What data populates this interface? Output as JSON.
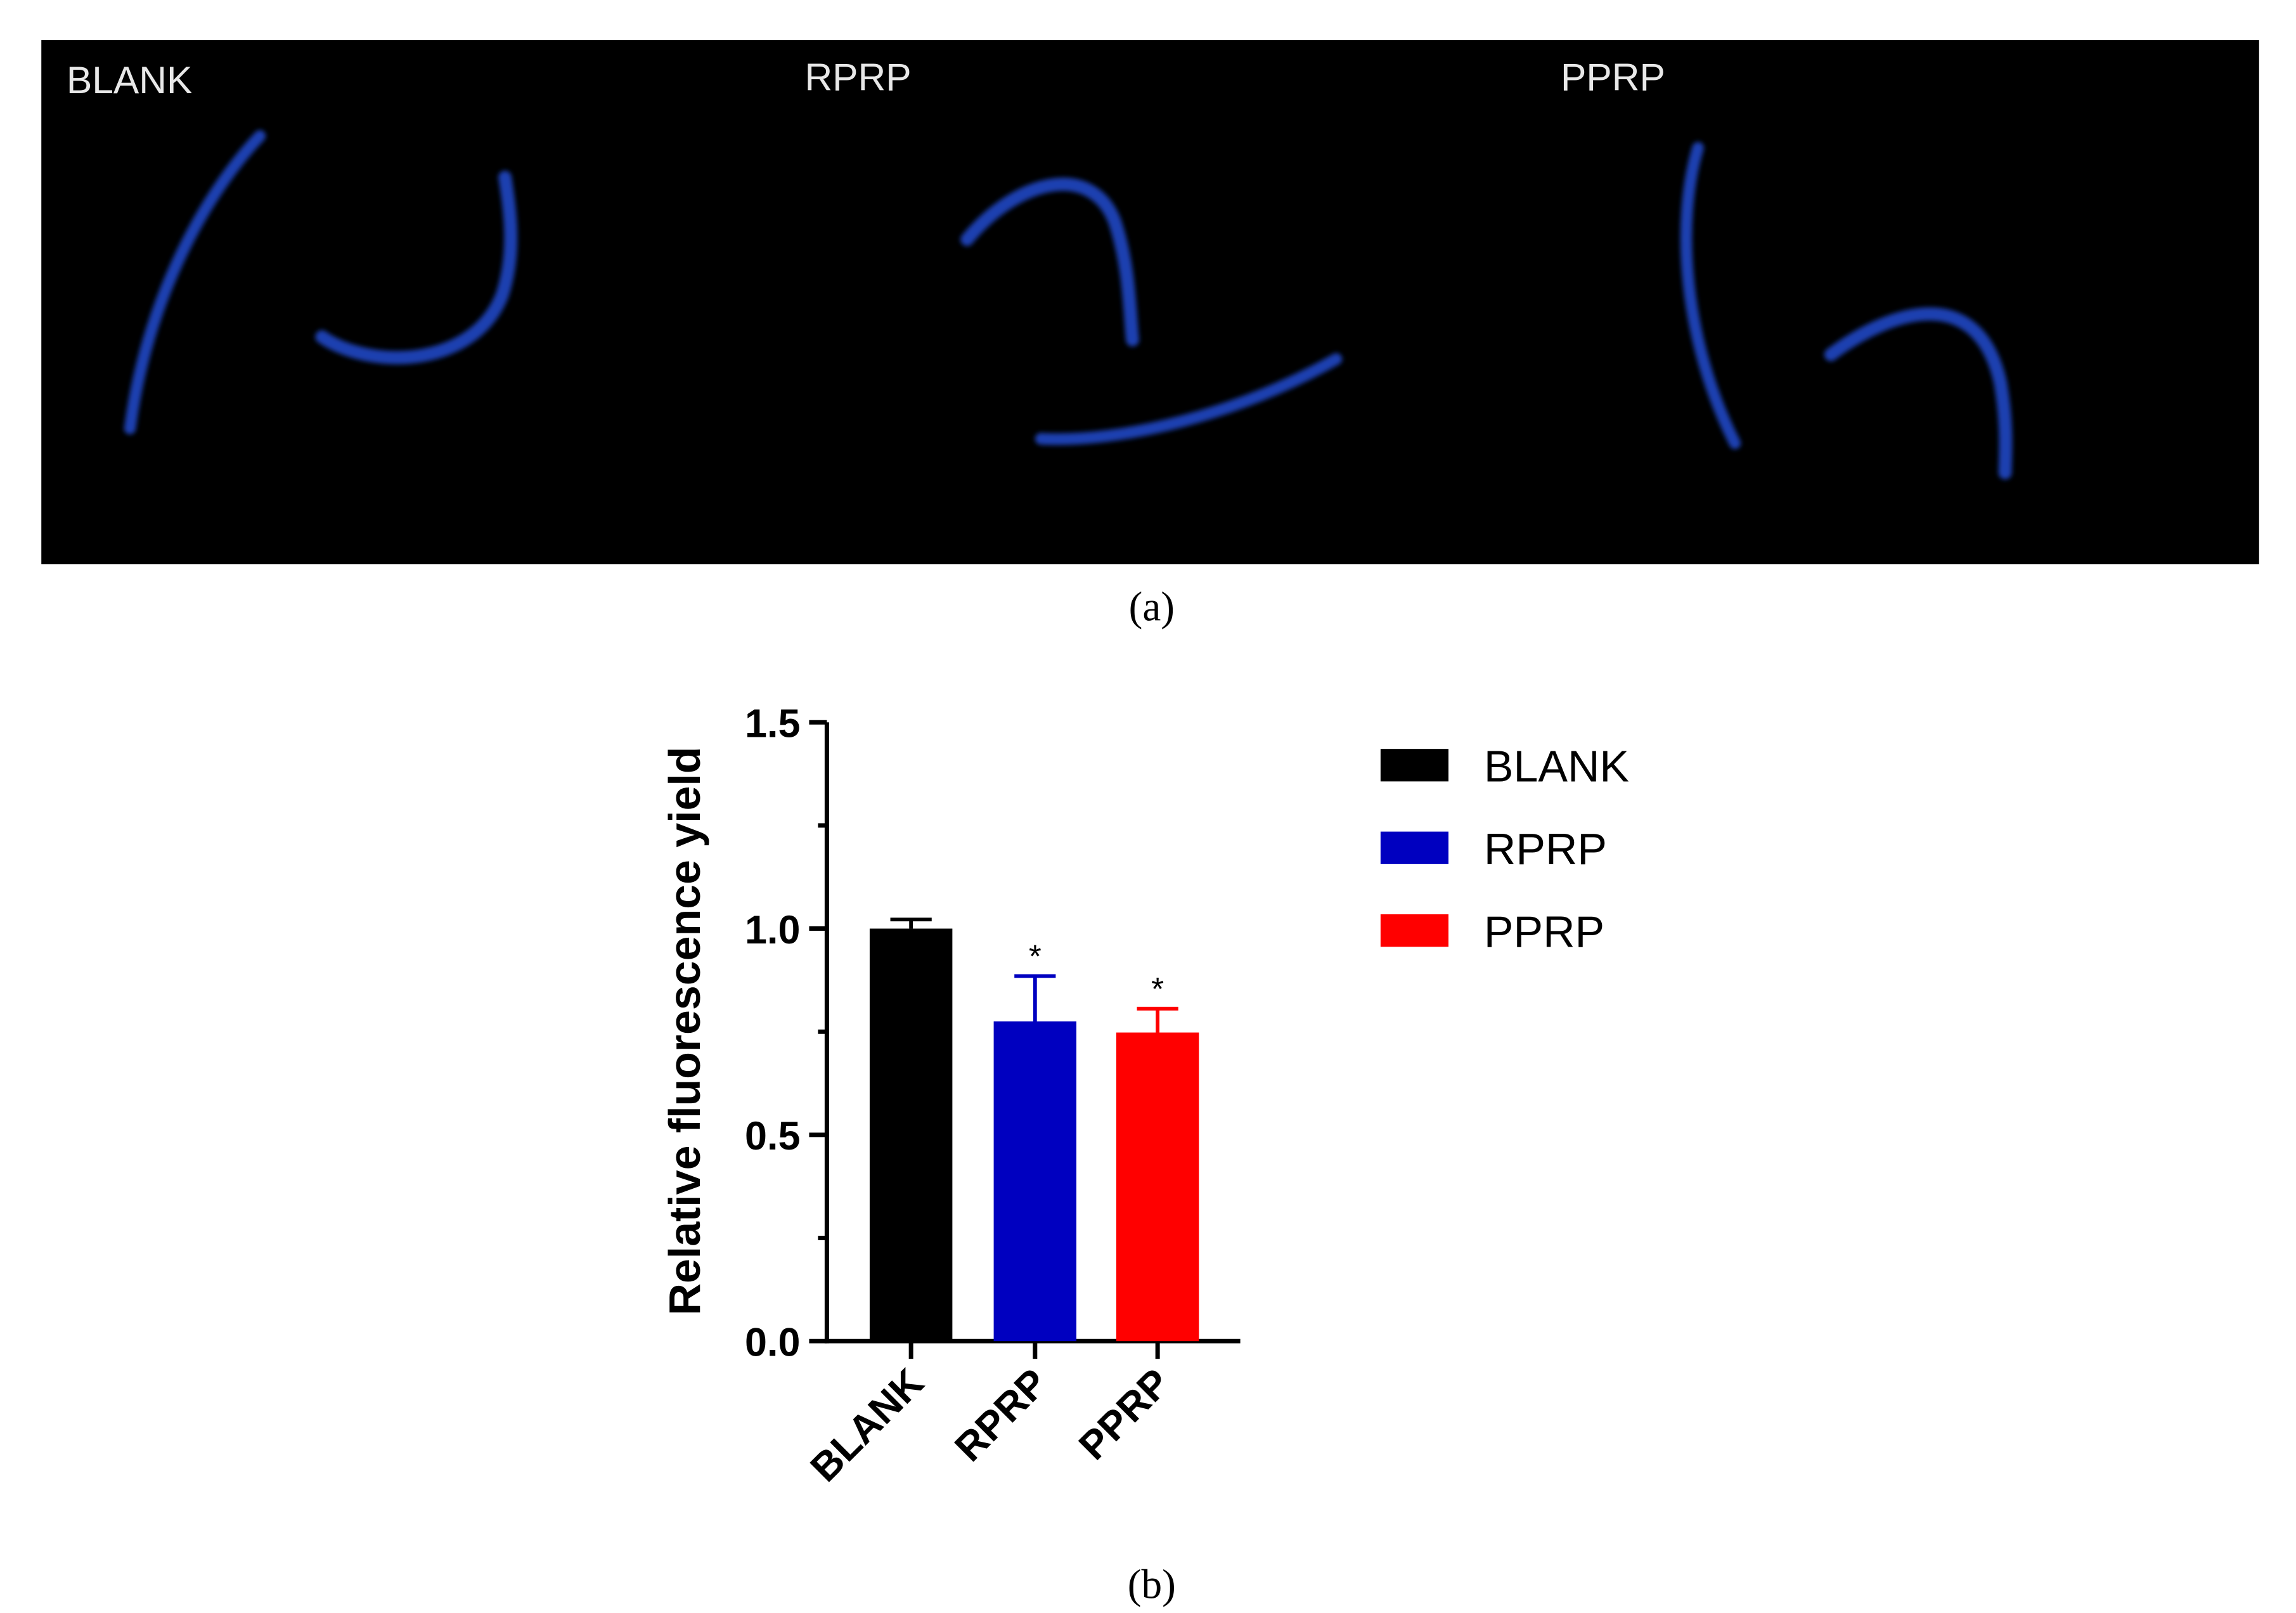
{
  "panel_a": {
    "labels": [
      "BLANK",
      "RPRP",
      "PPRP"
    ],
    "caption": "(a)"
  },
  "chart_data": {
    "type": "bar",
    "caption": "(b)",
    "y_label": "Relative fluorescence yield",
    "categories": [
      "BLANK",
      "RPRP",
      "PPRP"
    ],
    "values": [
      1.0,
      0.775,
      0.748
    ],
    "errors": [
      0.022,
      0.11,
      0.058
    ],
    "colors": [
      "#000000",
      "#0000c0",
      "#ff0000"
    ],
    "significance": [
      null,
      "*",
      "*"
    ],
    "ylim": [
      0,
      1.5
    ],
    "yticks": [
      {
        "value": 0,
        "label": "0.0"
      },
      0.5,
      {
        "value": 1,
        "label": "1.0"
      },
      1.5
    ],
    "minor_yticks": [
      0.25,
      0.75,
      1.25
    ],
    "legend": true
  }
}
